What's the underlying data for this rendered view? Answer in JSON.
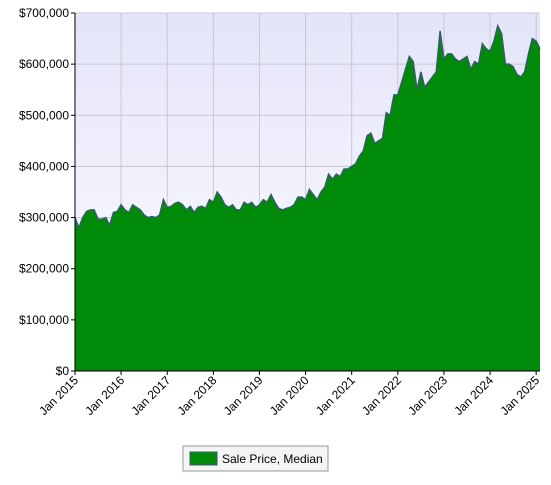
{
  "chart_data": {
    "type": "area",
    "categories": [
      "Jan 2015",
      "Feb 2015",
      "Mar 2015",
      "Apr 2015",
      "May 2015",
      "Jun 2015",
      "Jul 2015",
      "Aug 2015",
      "Sep 2015",
      "Oct 2015",
      "Nov 2015",
      "Dec 2015",
      "Jan 2016",
      "Feb 2016",
      "Mar 2016",
      "Apr 2016",
      "May 2016",
      "Jun 2016",
      "Jul 2016",
      "Aug 2016",
      "Sep 2016",
      "Oct 2016",
      "Nov 2016",
      "Dec 2016",
      "Jan 2017",
      "Feb 2017",
      "Mar 2017",
      "Apr 2017",
      "May 2017",
      "Jun 2017",
      "Jul 2017",
      "Aug 2017",
      "Sep 2017",
      "Oct 2017",
      "Nov 2017",
      "Dec 2017",
      "Jan 2018",
      "Feb 2018",
      "Mar 2018",
      "Apr 2018",
      "May 2018",
      "Jun 2018",
      "Jul 2018",
      "Aug 2018",
      "Sep 2018",
      "Oct 2018",
      "Nov 2018",
      "Dec 2018",
      "Jan 2019",
      "Feb 2019",
      "Mar 2019",
      "Apr 2019",
      "May 2019",
      "Jun 2019",
      "Jul 2019",
      "Aug 2019",
      "Sep 2019",
      "Oct 2019",
      "Nov 2019",
      "Dec 2019",
      "Jan 2020",
      "Feb 2020",
      "Mar 2020",
      "Apr 2020",
      "May 2020",
      "Jun 2020",
      "Jul 2020",
      "Aug 2020",
      "Sep 2020",
      "Oct 2020",
      "Nov 2020",
      "Dec 2020",
      "Jan 2021",
      "Feb 2021",
      "Mar 2021",
      "Apr 2021",
      "May 2021",
      "Jun 2021",
      "Jul 2021",
      "Aug 2021",
      "Sep 2021",
      "Oct 2021",
      "Nov 2021",
      "Dec 2021",
      "Jan 2022",
      "Feb 2022",
      "Mar 2022",
      "Apr 2022",
      "May 2022",
      "Jun 2022",
      "Jul 2022",
      "Aug 2022",
      "Sep 2022",
      "Oct 2022",
      "Nov 2022",
      "Dec 2022",
      "Jan 2023",
      "Feb 2023",
      "Mar 2023",
      "Apr 2023",
      "May 2023",
      "Jun 2023",
      "Jul 2023",
      "Aug 2023",
      "Sep 2023",
      "Oct 2023",
      "Nov 2023",
      "Dec 2023",
      "Jan 2024",
      "Feb 2024",
      "Mar 2024",
      "Apr 2024",
      "May 2024",
      "Jun 2024",
      "Jul 2024",
      "Aug 2024",
      "Sep 2024",
      "Oct 2024",
      "Nov 2024",
      "Dec 2024",
      "Jan 2025",
      "Feb 2025"
    ],
    "series": [
      {
        "name": "Sale Price, Median",
        "color": "#008a0a",
        "line_color": "#3a5a6a",
        "values": [
          300000,
          280000,
          300000,
          312000,
          315000,
          315000,
          297000,
          297000,
          300000,
          285000,
          310000,
          312000,
          325000,
          315000,
          310000,
          325000,
          320000,
          315000,
          305000,
          300000,
          302000,
          300000,
          305000,
          335000,
          320000,
          322000,
          328000,
          330000,
          325000,
          315000,
          322000,
          310000,
          320000,
          322000,
          318000,
          335000,
          330000,
          350000,
          340000,
          325000,
          320000,
          325000,
          315000,
          315000,
          330000,
          325000,
          330000,
          320000,
          325000,
          335000,
          330000,
          345000,
          330000,
          318000,
          315000,
          318000,
          320000,
          325000,
          340000,
          340000,
          335000,
          355000,
          345000,
          335000,
          350000,
          360000,
          385000,
          375000,
          385000,
          380000,
          395000,
          395000,
          400000,
          405000,
          420000,
          430000,
          460000,
          465000,
          445000,
          450000,
          455000,
          505000,
          500000,
          540000,
          540000,
          565000,
          590000,
          615000,
          605000,
          550000,
          585000,
          555000,
          565000,
          575000,
          585000,
          665000,
          610000,
          620000,
          620000,
          610000,
          605000,
          610000,
          615000,
          590000,
          605000,
          600000,
          640000,
          630000,
          625000,
          645000,
          675000,
          660000,
          600000,
          600000,
          595000,
          580000,
          575000,
          585000,
          620000,
          650000,
          645000,
          630000
        ]
      }
    ],
    "ylim": [
      0,
      700000
    ],
    "yticks": [
      {
        "value": 0,
        "label": "$0"
      },
      {
        "value": 100000,
        "label": "$100,000"
      },
      {
        "value": 200000,
        "label": "$200,000"
      },
      {
        "value": 300000,
        "label": "$300,000"
      },
      {
        "value": 400000,
        "label": "$400,000"
      },
      {
        "value": 500000,
        "label": "$500,000"
      },
      {
        "value": 600000,
        "label": "$600,000"
      },
      {
        "value": 700000,
        "label": "$700,000"
      }
    ],
    "grid": true,
    "legend": "bottom"
  }
}
